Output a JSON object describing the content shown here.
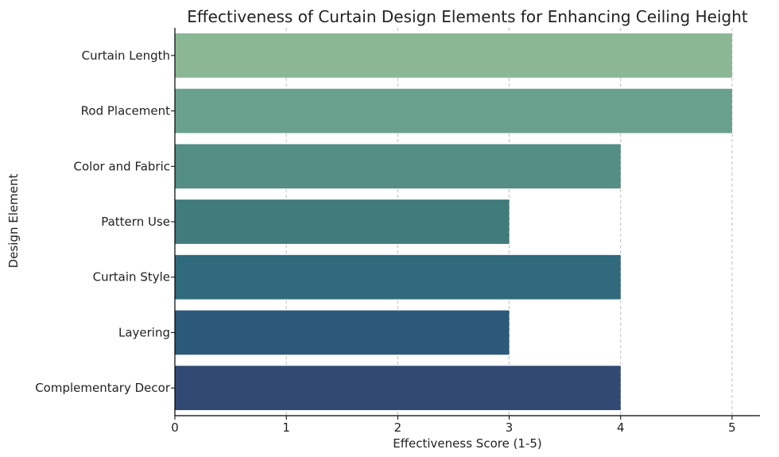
{
  "chart_data": {
    "type": "bar",
    "orientation": "horizontal",
    "title": "Effectiveness of Curtain Design Elements for Enhancing Ceiling Height",
    "xlabel": "Effectiveness Score (1-5)",
    "ylabel": "Design Element",
    "xlim": [
      0,
      5.25
    ],
    "xticks": [
      0,
      1,
      2,
      3,
      4,
      5
    ],
    "grid": "x-dashed",
    "categories": [
      "Curtain Length",
      "Rod Placement",
      "Color and Fabric",
      "Pattern Use",
      "Curtain Style",
      "Layering",
      "Complementary Decor"
    ],
    "values": [
      5,
      5,
      4,
      3,
      4,
      3,
      4
    ],
    "colors": [
      "#8cb795",
      "#6aa18e",
      "#548e84",
      "#417b7c",
      "#306a7c",
      "#2c5979",
      "#324a73"
    ]
  }
}
